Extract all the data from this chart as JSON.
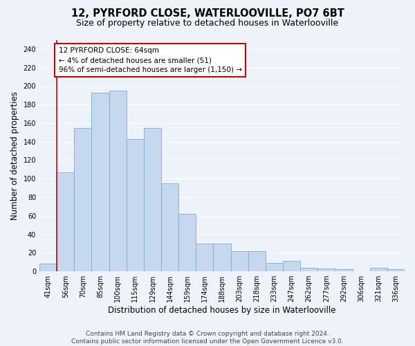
{
  "title": "12, PYRFORD CLOSE, WATERLOOVILLE, PO7 6BT",
  "subtitle": "Size of property relative to detached houses in Waterlooville",
  "xlabel": "Distribution of detached houses by size in Waterlooville",
  "ylabel": "Number of detached properties",
  "categories": [
    "41sqm",
    "56sqm",
    "70sqm",
    "85sqm",
    "100sqm",
    "115sqm",
    "129sqm",
    "144sqm",
    "159sqm",
    "174sqm",
    "188sqm",
    "203sqm",
    "218sqm",
    "233sqm",
    "247sqm",
    "262sqm",
    "277sqm",
    "292sqm",
    "306sqm",
    "321sqm",
    "336sqm"
  ],
  "values": [
    8,
    107,
    155,
    193,
    195,
    143,
    155,
    95,
    62,
    30,
    30,
    22,
    22,
    9,
    11,
    4,
    3,
    2,
    0,
    4,
    2
  ],
  "bar_color": "#c5d8ee",
  "bar_edge_color": "#7aadd4",
  "annotation_text_line1": "12 PYRFORD CLOSE: 64sqm",
  "annotation_text_line2": "← 4% of detached houses are smaller (51)",
  "annotation_text_line3": "96% of semi-detached houses are larger (1,150) →",
  "annotation_box_color": "#ffffff",
  "annotation_box_edge_color": "#cc0000",
  "vline_color": "#cc0000",
  "footer_line1": "Contains HM Land Registry data © Crown copyright and database right 2024.",
  "footer_line2": "Contains public sector information licensed under the Open Government Licence v3.0.",
  "ylim": [
    0,
    250
  ],
  "yticks": [
    0,
    20,
    40,
    60,
    80,
    100,
    120,
    140,
    160,
    180,
    200,
    220,
    240
  ],
  "background_color": "#eef2f9",
  "grid_color": "#ffffff",
  "title_fontsize": 10.5,
  "subtitle_fontsize": 9,
  "xlabel_fontsize": 8.5,
  "ylabel_fontsize": 8.5,
  "tick_fontsize": 7,
  "footer_fontsize": 6.5,
  "annotation_fontsize": 7.5
}
